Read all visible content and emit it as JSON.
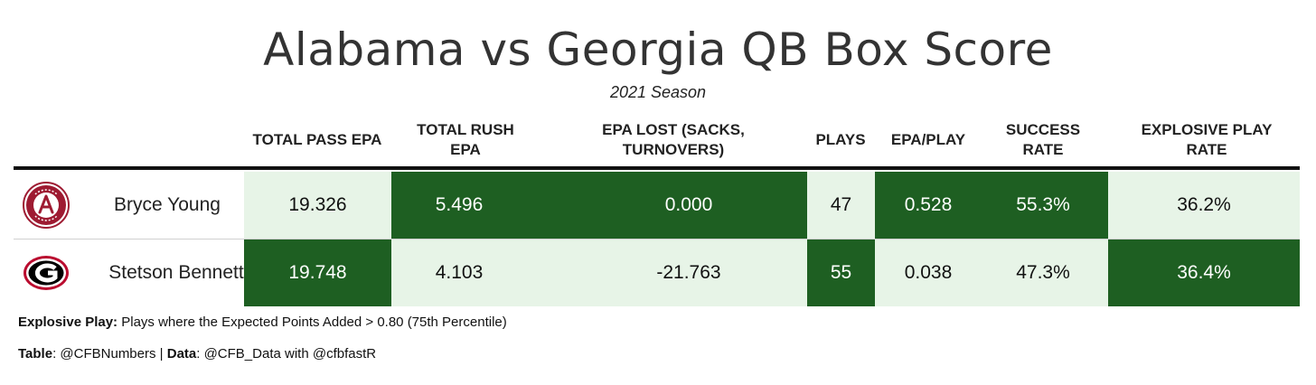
{
  "title": "Alabama vs Georgia QB Box Score",
  "subtitle": "2021 Season",
  "columns": {
    "total_pass_epa": "TOTAL PASS EPA",
    "total_rush_epa": "TOTAL RUSH EPA",
    "epa_lost": "EPA LOST (SACKS, TURNOVERS)",
    "plays": "PLAYS",
    "epa_play": "EPA/PLAY",
    "success_rate": "SUCCESS RATE",
    "explosive_play_rate": "EXPLOSIVE PLAY RATE"
  },
  "rows": [
    {
      "team_logo": "alabama-logo",
      "player": "Bryce Young",
      "total_pass_epa": "19.326",
      "total_rush_epa": "5.496",
      "epa_lost": "0.000",
      "plays": "47",
      "epa_play": "0.528",
      "success_rate": "55.3%",
      "explosive_play_rate": "36.2%"
    },
    {
      "team_logo": "georgia-logo",
      "player": "Stetson Bennett",
      "total_pass_epa": "19.748",
      "total_rush_epa": "4.103",
      "epa_lost": "-21.763",
      "plays": "55",
      "epa_play": "0.038",
      "success_rate": "47.3%",
      "explosive_play_rate": "36.4%"
    }
  ],
  "colors": {
    "dark_green": "#1e5f22",
    "light_green": "#e7f4e7"
  },
  "footnotes": {
    "explosive_label": "Explosive Play:",
    "explosive_text": " Plays where the Expected Points Added > 0.80 (75th Percentile)",
    "table_label": "Table",
    "table_text": ": @CFBNumbers | ",
    "data_label": "Data",
    "data_text": ": @CFB_Data with @cfbfastR"
  }
}
